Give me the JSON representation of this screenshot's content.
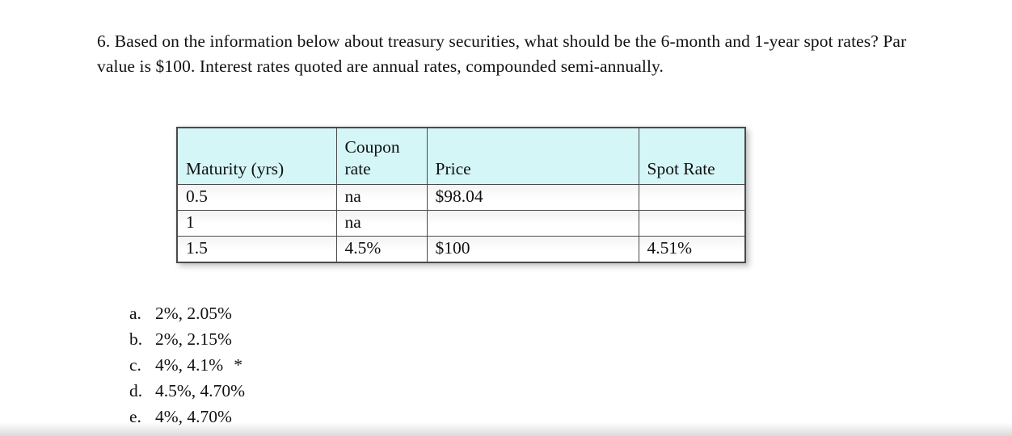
{
  "question": {
    "text": "6. Based on the information below about treasury securities, what should be the 6-month and 1-year spot rates? Par value is $100. Interest rates quoted are annual rates, compounded semi-annually."
  },
  "table": {
    "headers": [
      "Maturity (yrs)",
      "Coupon rate",
      "Price",
      "Spot Rate"
    ],
    "rows": [
      [
        "0.5",
        "na",
        "$98.04",
        ""
      ],
      [
        "1",
        "na",
        "",
        ""
      ],
      [
        "1.5",
        "4.5%",
        "$100",
        "4.51%"
      ]
    ],
    "header_bg": "#d5f6f7",
    "border_color": "#4a4a4a"
  },
  "options": [
    {
      "letter": "a.",
      "text": "2%, 2.05%",
      "marker": ""
    },
    {
      "letter": "b.",
      "text": "2%, 2.15%",
      "marker": ""
    },
    {
      "letter": "c.",
      "text": "4%, 4.1%",
      "marker": "*"
    },
    {
      "letter": "d.",
      "text": "4.5%, 4.70%",
      "marker": ""
    },
    {
      "letter": "e.",
      "text": "4%, 4.70%",
      "marker": ""
    }
  ]
}
